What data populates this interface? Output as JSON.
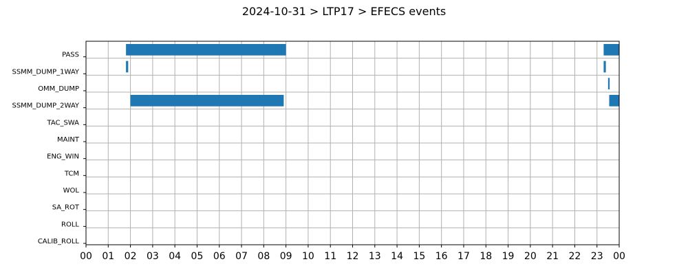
{
  "chart_data": {
    "type": "gantt",
    "title": "2024-10-31 > LTP17 > EFECS events",
    "xlabel": "",
    "ylabel": "",
    "x_unit": "hours",
    "xlim": [
      0,
      24
    ],
    "x_ticks": [
      0,
      1,
      2,
      3,
      4,
      5,
      6,
      7,
      8,
      9,
      10,
      11,
      12,
      13,
      14,
      15,
      16,
      17,
      18,
      19,
      20,
      21,
      22,
      23,
      24
    ],
    "x_tick_labels": [
      "00",
      "01",
      "02",
      "03",
      "04",
      "05",
      "06",
      "07",
      "08",
      "09",
      "10",
      "11",
      "12",
      "13",
      "14",
      "15",
      "16",
      "17",
      "18",
      "19",
      "20",
      "21",
      "22",
      "23",
      "00"
    ],
    "grid": true,
    "bar_color": "#1f77b4",
    "categories": [
      "PASS",
      "SSMM_DUMP_1WAY",
      "OMM_DUMP",
      "SSMM_DUMP_2WAY",
      "TAC_SWA",
      "MAINT",
      "ENG_WIN",
      "TCM",
      "WOL",
      "SA_ROT",
      "ROLL",
      "CALIB_ROLL"
    ],
    "events": [
      {
        "category": "PASS",
        "start": 1.8,
        "end": 9.0
      },
      {
        "category": "PASS",
        "start": 23.3,
        "end": 24.0
      },
      {
        "category": "SSMM_DUMP_1WAY",
        "start": 1.8,
        "end": 1.9
      },
      {
        "category": "SSMM_DUMP_1WAY",
        "start": 23.3,
        "end": 23.4
      },
      {
        "category": "OMM_DUMP",
        "start": 23.5,
        "end": 23.57
      },
      {
        "category": "SSMM_DUMP_2WAY",
        "start": 2.0,
        "end": 8.9
      },
      {
        "category": "SSMM_DUMP_2WAY",
        "start": 23.55,
        "end": 24.0
      }
    ]
  }
}
